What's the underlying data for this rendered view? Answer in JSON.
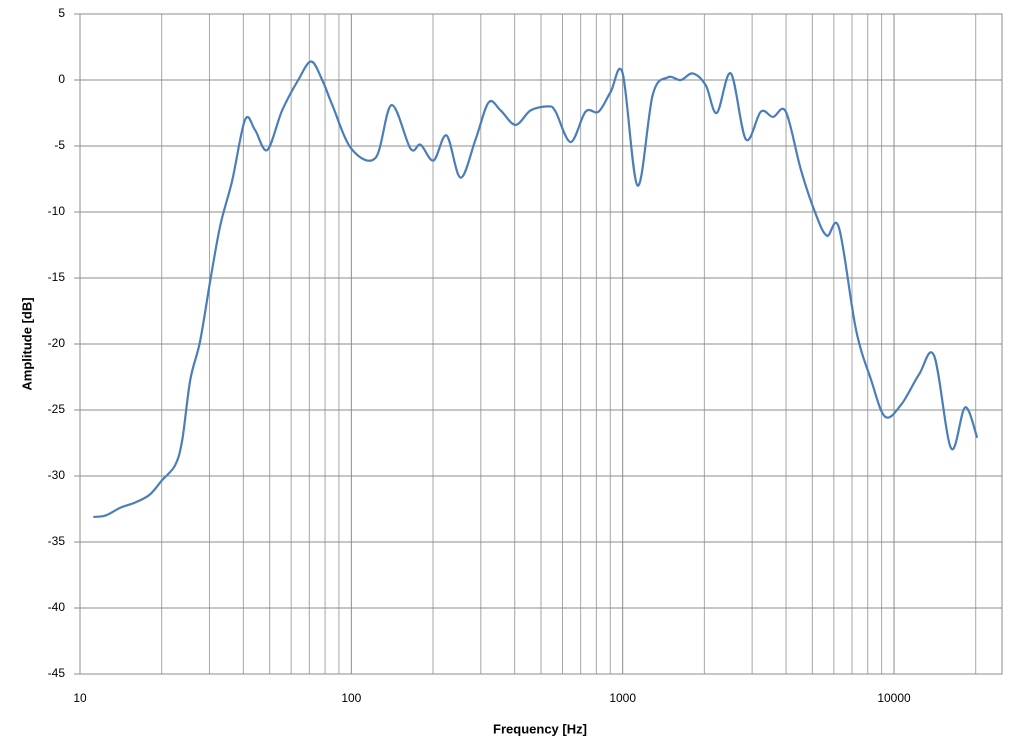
{
  "chart_data": {
    "type": "line",
    "x_label": "Frequency [Hz]",
    "y_label": "Amplitude [dB]",
    "xlog": true,
    "xlim": [
      10,
      25000
    ],
    "xticks": [
      10,
      100,
      1000,
      10000
    ],
    "xminorticks": [
      20,
      30,
      40,
      50,
      60,
      70,
      80,
      90,
      200,
      300,
      400,
      500,
      600,
      700,
      800,
      900,
      2000,
      3000,
      4000,
      5000,
      6000,
      7000,
      8000,
      9000,
      20000
    ],
    "ylim": [
      -45,
      5
    ],
    "yticks": [
      -45,
      -40,
      -35,
      -30,
      -25,
      -20,
      -15,
      -10,
      -5,
      0,
      5
    ],
    "grid": true,
    "series": [
      {
        "color": "#4a7ebb",
        "x": [
          11.2,
          12.4,
          14.1,
          16,
          18.1,
          20.1,
          22.4,
          23.8,
          25.5,
          27.7,
          30.2,
          32.9,
          36.4,
          40.6,
          44.2,
          49,
          55.6,
          63.7,
          71.1,
          78.1,
          85.1,
          100,
          122.8,
          140.6,
          165.2,
          179.9,
          200.9,
          224.4,
          252.6,
          287,
          320.6,
          354.8,
          403,
          458,
          533,
          566,
          643,
          730,
          815,
          903,
          1000,
          1135,
          1291,
          1466,
          1637,
          1812,
          2024,
          2222,
          2504,
          2845,
          3230,
          3580,
          3992,
          4537,
          5155,
          5660,
          6270,
          7240,
          8225,
          9265,
          10620,
          12370,
          14060,
          16230,
          18280,
          20250
        ],
        "values": [
          -33.1,
          -33.0,
          -32.4,
          -32.0,
          -31.4,
          -30.3,
          -29.2,
          -27.3,
          -22.7,
          -19.8,
          -15.2,
          -11.0,
          -7.6,
          -3.0,
          -3.8,
          -5.3,
          -2.3,
          0.0,
          1.4,
          0.0,
          -1.9,
          -5.2,
          -5.9,
          -1.9,
          -5.2,
          -4.9,
          -6.1,
          -4.2,
          -7.4,
          -4.5,
          -1.7,
          -2.3,
          -3.4,
          -2.3,
          -2.0,
          -2.4,
          -4.7,
          -2.4,
          -2.4,
          -0.9,
          0.5,
          -8.0,
          -1.1,
          0.2,
          0.0,
          0.5,
          -0.4,
          -2.5,
          0.5,
          -4.5,
          -2.4,
          -2.8,
          -2.4,
          -6.8,
          -10.2,
          -11.8,
          -11.2,
          -18.9,
          -22.7,
          -25.5,
          -24.6,
          -22.3,
          -20.9,
          -27.9,
          -24.8,
          -27.1
        ]
      }
    ]
  }
}
